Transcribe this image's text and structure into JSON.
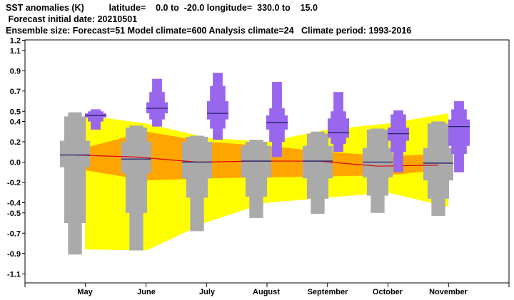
{
  "header": {
    "line1": "SST anomalies (K)          latitude=    0.0 to  -20.0 longitude=  330.0 to    15.0",
    "line2": " Forecast initial date: 20210501",
    "line3": "Ensemble size: Forecast=51 Model climate=600 Analysis climate=24   Climate period: 1993-2016"
  },
  "chart_data": {
    "type": "box",
    "categories": [
      "May",
      "June",
      "July",
      "August",
      "September",
      "October",
      "November"
    ],
    "ylim": [
      -1.35,
      1.2
    ],
    "y_ticks": [
      1.2,
      1.1,
      0.9,
      0.7,
      0.5,
      0.4,
      0.2,
      0.0,
      -0.2,
      -0.4,
      -0.5,
      -0.7,
      -0.9,
      -1.1
    ],
    "colors": {
      "model_climate_outer": "#ffff00",
      "model_climate_inner": "#ffa500",
      "climate_box": "#aaaaaa",
      "forecast_box": "#9966ee",
      "forecast_median": "#222266",
      "climate_median_line": "#dd0000",
      "climate_median": "#333377"
    },
    "model_climate_outer": {
      "upper": [
        0.46,
        0.38,
        0.24,
        0.2,
        0.32,
        0.38,
        0.48
      ],
      "lower": [
        -0.86,
        -0.87,
        -0.59,
        -0.4,
        -0.35,
        -0.3,
        -0.44
      ]
    },
    "model_climate_inner": {
      "upper": [
        0.14,
        0.3,
        0.2,
        0.16,
        0.1,
        0.06,
        0.08
      ],
      "lower": [
        -0.08,
        -0.18,
        -0.16,
        -0.15,
        -0.14,
        -0.13,
        -0.07
      ]
    },
    "climate_median_line": [
      0.07,
      0.05,
      0.0,
      0.01,
      0.01,
      -0.04,
      -0.03
    ],
    "climate_boxes": [
      {
        "min": -0.91,
        "p5": -0.6,
        "p25": -0.05,
        "median": 0.07,
        "p75": 0.21,
        "p95": 0.45,
        "max": 0.49
      },
      {
        "min": -0.87,
        "p5": -0.5,
        "p25": -0.11,
        "median": 0.03,
        "p75": 0.2,
        "p95": 0.34,
        "max": 0.36
      },
      {
        "min": -0.68,
        "p5": -0.35,
        "p25": -0.16,
        "median": 0.0,
        "p75": 0.2,
        "p95": 0.25,
        "max": 0.26
      },
      {
        "min": -0.55,
        "p5": -0.34,
        "p25": -0.15,
        "median": 0.01,
        "p75": 0.16,
        "p95": 0.2,
        "max": 0.22
      },
      {
        "min": -0.51,
        "p5": -0.36,
        "p25": -0.16,
        "median": 0.01,
        "p75": 0.16,
        "p95": 0.28,
        "max": 0.3
      },
      {
        "min": -0.5,
        "p5": -0.33,
        "p25": -0.15,
        "median": 0.0,
        "p75": 0.14,
        "p95": 0.32,
        "max": 0.33
      },
      {
        "min": -0.53,
        "p5": -0.36,
        "p25": -0.18,
        "median": -0.01,
        "p75": 0.14,
        "p95": 0.38,
        "max": 0.4
      }
    ],
    "forecast_boxes": [
      {
        "min": 0.32,
        "p5": 0.4,
        "p25": 0.44,
        "median": 0.46,
        "p75": 0.48,
        "p95": 0.5,
        "max": 0.52
      },
      {
        "min": 0.35,
        "p5": 0.42,
        "p25": 0.48,
        "median": 0.53,
        "p75": 0.59,
        "p95": 0.69,
        "max": 0.82
      },
      {
        "min": 0.22,
        "p5": 0.33,
        "p25": 0.42,
        "median": 0.48,
        "p75": 0.6,
        "p95": 0.75,
        "max": 0.88
      },
      {
        "min": 0.05,
        "p5": 0.2,
        "p25": 0.32,
        "median": 0.39,
        "p75": 0.46,
        "p95": 0.53,
        "max": 0.79
      },
      {
        "min": 0.1,
        "p5": 0.18,
        "p25": 0.24,
        "median": 0.29,
        "p75": 0.43,
        "p95": 0.5,
        "max": 0.69
      },
      {
        "min": -0.1,
        "p5": 0.1,
        "p25": 0.21,
        "median": 0.28,
        "p75": 0.34,
        "p95": 0.47,
        "max": 0.51
      },
      {
        "min": -0.1,
        "p5": 0.08,
        "p25": 0.16,
        "median": 0.35,
        "p75": 0.42,
        "p95": 0.52,
        "max": 0.6
      }
    ]
  }
}
